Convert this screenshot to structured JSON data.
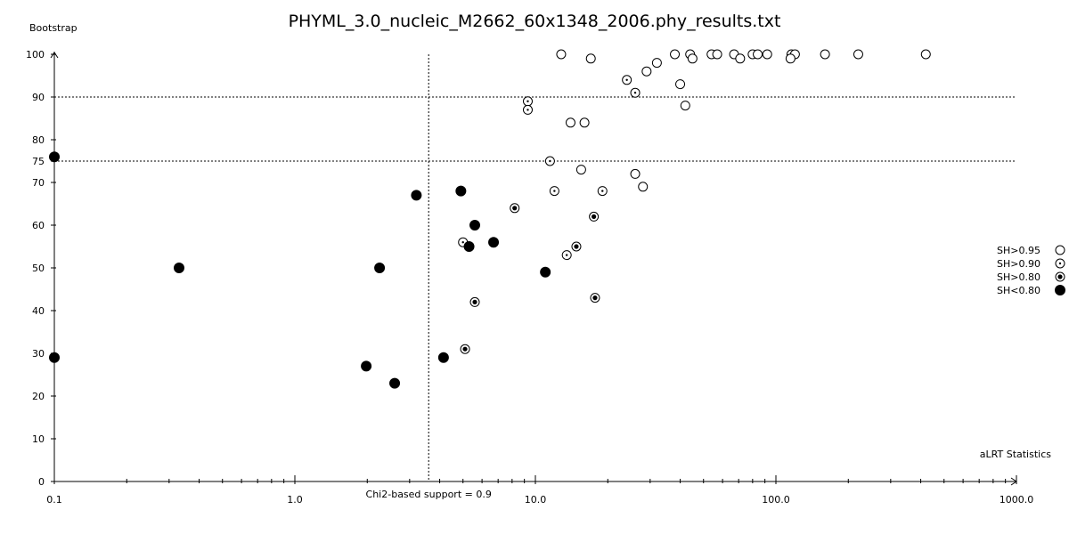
{
  "chart_data": {
    "type": "scatter",
    "title": "PHYML_3.0_nucleic_M2662_60x1348_2006.phy_results.txt",
    "xlabel": "aLRT Statistics",
    "ylabel": "Bootstrap",
    "x_scale": "log",
    "xlim": [
      0.1,
      1000
    ],
    "ylim": [
      0,
      100
    ],
    "x_major_ticks": [
      0.1,
      1,
      10,
      100,
      1000
    ],
    "x_tick_labels": [
      "0.1",
      "1.0",
      "10.0",
      "100.0",
      "1000.0"
    ],
    "y_ticks": [
      0,
      10,
      20,
      30,
      40,
      50,
      60,
      70,
      75,
      80,
      90,
      100
    ],
    "y_tick_labels": [
      "0",
      "10",
      "20",
      "30",
      "40",
      "50",
      "60",
      "70",
      "75",
      "80",
      "90",
      "100"
    ],
    "grid": false,
    "reference_lines": {
      "horizontal": [
        90,
        75
      ],
      "vertical": {
        "x": 3.6,
        "label": "Chi2-based support = 0.9"
      }
    },
    "legend_position": "right",
    "series": [
      {
        "name": "SH>0.95",
        "marker": "open-circle",
        "points": [
          [
            12.8,
            100
          ],
          [
            38,
            100
          ],
          [
            44,
            100
          ],
          [
            54,
            100
          ],
          [
            57,
            100
          ],
          [
            67,
            100
          ],
          [
            80,
            100
          ],
          [
            84,
            100
          ],
          [
            92,
            100
          ],
          [
            116,
            100
          ],
          [
            120,
            100
          ],
          [
            160,
            100
          ],
          [
            220,
            100
          ],
          [
            420,
            100
          ],
          [
            17,
            99
          ],
          [
            45,
            99
          ],
          [
            71,
            99
          ],
          [
            115,
            99
          ],
          [
            32,
            98
          ],
          [
            29,
            96
          ],
          [
            40,
            93
          ],
          [
            42,
            88
          ],
          [
            14,
            84
          ],
          [
            16,
            84
          ],
          [
            15.5,
            73
          ],
          [
            26,
            72
          ],
          [
            28,
            69
          ]
        ]
      },
      {
        "name": "SH>0.90",
        "marker": "circle-dot",
        "points": [
          [
            24,
            94
          ],
          [
            26,
            91
          ],
          [
            9.3,
            89
          ],
          [
            9.3,
            87
          ],
          [
            11.5,
            75
          ],
          [
            12,
            68
          ],
          [
            19,
            68
          ],
          [
            5,
            56
          ],
          [
            13.5,
            53
          ]
        ]
      },
      {
        "name": "SH>0.80",
        "marker": "circle-filled-center",
        "points": [
          [
            8.2,
            64
          ],
          [
            17.5,
            62
          ],
          [
            14.8,
            55
          ],
          [
            5.6,
            42
          ],
          [
            17.7,
            43
          ],
          [
            5.1,
            31
          ]
        ]
      },
      {
        "name": "SH<0.80",
        "marker": "filled-circle",
        "points": [
          [
            0.1,
            76
          ],
          [
            3.2,
            67
          ],
          [
            4.9,
            68
          ],
          [
            5.6,
            60
          ],
          [
            5.3,
            55
          ],
          [
            6.7,
            56
          ],
          [
            0.33,
            50
          ],
          [
            2.25,
            50
          ],
          [
            11,
            49
          ],
          [
            0.1,
            29
          ],
          [
            4.15,
            29
          ],
          [
            1.98,
            27
          ],
          [
            2.6,
            23
          ]
        ]
      }
    ]
  }
}
